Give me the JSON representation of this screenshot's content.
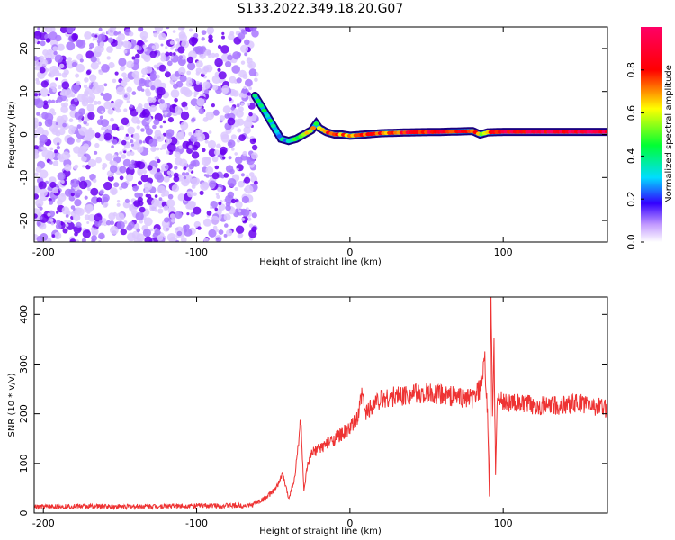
{
  "title": "S133.2022.349.18.20.G07",
  "chart_data": [
    {
      "type": "heatmap",
      "title": "S133.2022.349.18.20.G07",
      "xlabel": "Height of straight line (km)",
      "ylabel": "Frequency (Hz)",
      "xlim": [
        -206,
        168
      ],
      "ylim": [
        -25,
        25
      ],
      "xticks": [
        -200,
        -100,
        0,
        100
      ],
      "yticks": [
        -20,
        -10,
        0,
        10,
        20
      ],
      "noise_region_x": [
        -206,
        -61
      ],
      "signal_track": {
        "x": [
          -62,
          -55,
          -50,
          -45,
          -40,
          -35,
          -30,
          -25,
          -22,
          -20,
          -15,
          -10,
          -5,
          0,
          10,
          20,
          40,
          60,
          80,
          85,
          90,
          100,
          120,
          140,
          168
        ],
        "frequency": [
          9,
          5,
          2,
          -1,
          -1.5,
          -1,
          0,
          1,
          2.5,
          1.5,
          0.5,
          0,
          0,
          -0.3,
          0,
          0.3,
          0.5,
          0.6,
          0.8,
          0,
          0.5,
          0.6,
          0.6,
          0.6,
          0.6
        ],
        "amplitude": [
          0.3,
          0.45,
          0.4,
          0.3,
          0.35,
          0.5,
          0.6,
          0.7,
          0.55,
          0.7,
          0.75,
          0.8,
          0.7,
          0.75,
          0.8,
          0.75,
          0.85,
          0.85,
          0.8,
          0.5,
          0.75,
          0.85,
          0.9,
          0.9,
          0.9
        ]
      },
      "colorbar": {
        "label": "Normalized spectral amplitude",
        "range": [
          0,
          1
        ],
        "ticks": [
          0.0,
          0.2,
          0.4,
          0.6,
          0.8
        ]
      },
      "grid": false
    },
    {
      "type": "line",
      "xlabel": "Height of straight line (km)",
      "ylabel": "SNR (10 * v/v)",
      "xlim": [
        -206,
        168
      ],
      "ylim": [
        0,
        435
      ],
      "xticks": [
        -200,
        -100,
        0,
        100
      ],
      "yticks": [
        0,
        100,
        200,
        300,
        400
      ],
      "series": [
        {
          "color": "#ee3333",
          "x": [
            -206,
            -180,
            -150,
            -120,
            -90,
            -65,
            -55,
            -48,
            -44,
            -40,
            -36,
            -32,
            -30,
            -28,
            -25,
            -20,
            -15,
            -10,
            -5,
            0,
            5,
            8,
            10,
            15,
            20,
            30,
            40,
            50,
            60,
            70,
            80,
            85,
            88,
            90,
            91,
            92,
            93,
            94,
            95,
            96,
            100,
            110,
            120,
            130,
            140,
            150,
            160,
            168
          ],
          "y": [
            12,
            14,
            13,
            14,
            15,
            15,
            30,
            50,
            80,
            30,
            70,
            190,
            40,
            90,
            120,
            130,
            140,
            150,
            160,
            170,
            190,
            240,
            200,
            220,
            230,
            235,
            240,
            240,
            238,
            235,
            230,
            250,
            300,
            180,
            30,
            430,
            200,
            330,
            80,
            230,
            225,
            220,
            218,
            215,
            218,
            222,
            215,
            210
          ]
        }
      ],
      "grid": false
    }
  ]
}
